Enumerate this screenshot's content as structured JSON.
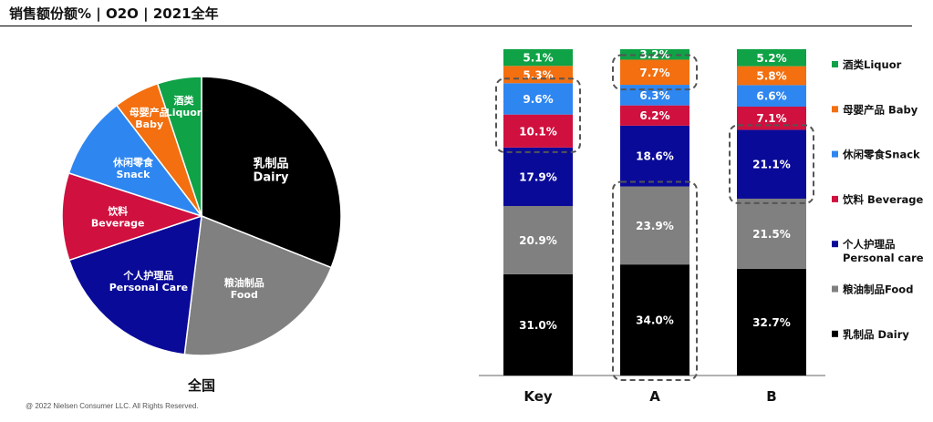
{
  "header": {
    "title": "销售额份额% | O2O | 2021全年"
  },
  "footer": {
    "copyright": "@ 2022 Nielsen Consumer LLC. All Rights Reserved."
  },
  "colors": {
    "dairy": "#000000",
    "food": "#808080",
    "personal_care": "#0a0a99",
    "beverage": "#d0103e",
    "snack": "#2e86f0",
    "baby": "#f36f0f",
    "liquor": "#0fa246"
  },
  "chart_data": [
    {
      "type": "pie",
      "title": "全国",
      "slices": [
        {
          "label_cn": "乳制品",
          "label_en": "Dairy",
          "value": 31.0,
          "color_key": "dairy"
        },
        {
          "label_cn": "粮油制品",
          "label_en": "Food",
          "value": 20.9,
          "color_key": "food"
        },
        {
          "label_cn": "个人护理品",
          "label_en": "Personal Care",
          "value": 17.9,
          "color_key": "personal_care"
        },
        {
          "label_cn": "饮料",
          "label_en": "Beverage",
          "value": 10.1,
          "color_key": "beverage"
        },
        {
          "label_cn": "休闲零食",
          "label_en": "Snack",
          "value": 9.6,
          "color_key": "snack"
        },
        {
          "label_cn": "母婴产品",
          "label_en": "Baby",
          "value": 5.3,
          "color_key": "baby"
        },
        {
          "label_cn": "酒类",
          "label_en": "Liquor",
          "value": 5.1,
          "color_key": "liquor"
        }
      ]
    },
    {
      "type": "bar",
      "stacked": true,
      "percent": true,
      "categories": [
        "Key",
        "A",
        "B"
      ],
      "series": [
        {
          "name": "乳制品 Dairy",
          "color_key": "dairy",
          "values": [
            31.0,
            34.0,
            32.7
          ]
        },
        {
          "name": "粮油制品Food",
          "color_key": "food",
          "values": [
            20.9,
            23.9,
            21.5
          ]
        },
        {
          "name": "个人护理品 Personal care",
          "color_key": "personal_care",
          "values": [
            17.9,
            18.6,
            21.1
          ]
        },
        {
          "name": "饮料 Beverage",
          "color_key": "beverage",
          "values": [
            10.1,
            6.2,
            7.1
          ]
        },
        {
          "name": "休闲零食Snack",
          "color_key": "snack",
          "values": [
            9.6,
            6.3,
            6.6
          ]
        },
        {
          "name": "母婴产品 Baby",
          "color_key": "baby",
          "values": [
            5.3,
            7.7,
            5.8
          ]
        },
        {
          "name": "酒类Liquor",
          "color_key": "liquor",
          "values": [
            5.1,
            3.2,
            5.2
          ]
        }
      ],
      "highlights": [
        {
          "category": "Key",
          "series": [
            "饮料 Beverage",
            "休闲零食Snack"
          ]
        },
        {
          "category": "A",
          "series": [
            "乳制品 Dairy",
            "粮油制品Food"
          ]
        },
        {
          "category": "A",
          "series": [
            "母婴产品 Baby"
          ]
        },
        {
          "category": "B",
          "series": [
            "个人护理品 Personal care"
          ]
        }
      ],
      "legend": {
        "position": "right",
        "items": [
          {
            "line1": "酒类Liquor",
            "line2": "",
            "color_key": "liquor"
          },
          {
            "line1": "母婴产品 Baby",
            "line2": "",
            "color_key": "baby"
          },
          {
            "line1": "休闲零食Snack",
            "line2": "",
            "color_key": "snack"
          },
          {
            "line1": "饮料 Beverage",
            "line2": "",
            "color_key": "beverage"
          },
          {
            "line1": "个人护理品",
            "line2": "Personal care",
            "color_key": "personal_care"
          },
          {
            "line1": "粮油制品Food",
            "line2": "",
            "color_key": "food"
          },
          {
            "line1": "乳制品 Dairy",
            "line2": "",
            "color_key": "dairy"
          }
        ]
      }
    }
  ]
}
